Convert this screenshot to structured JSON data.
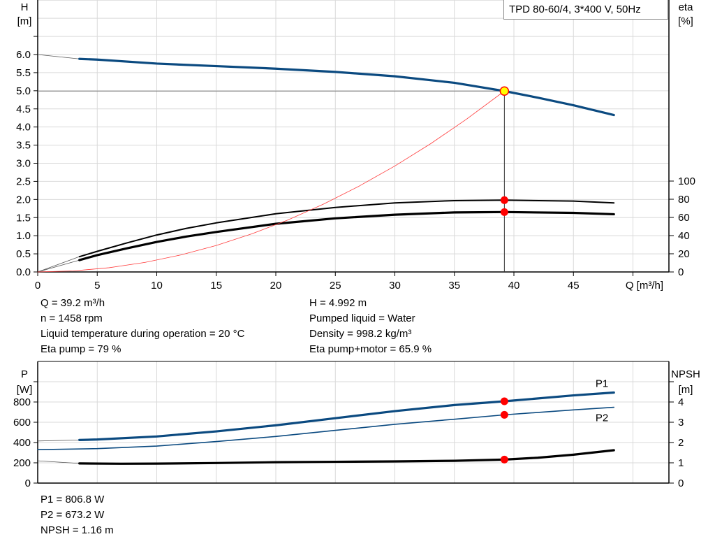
{
  "chart_data": [
    {
      "type": "line",
      "title": "TPD 80-60/4, 3*400 V, 50Hz",
      "xlabel": "Q [m³/h]",
      "ylabel": [
        "H",
        "[m]"
      ],
      "y2label": [
        "eta",
        "[%]"
      ],
      "xlim": [
        0,
        53
      ],
      "ylim": [
        0,
        7.5
      ],
      "y2lim": [
        0,
        100
      ],
      "grid": true,
      "legend": "top-right",
      "x_ticks": [
        "0",
        "5",
        "10",
        "15",
        "20",
        "25",
        "30",
        "35",
        "40",
        "45"
      ],
      "y_ticks": [
        "0.0",
        "0.5",
        "1.0",
        "1.5",
        "2.0",
        "2.5",
        "3.0",
        "3.5",
        "4.0",
        "4.5",
        "5.0",
        "5.5",
        "6.0"
      ],
      "y2_ticks": [
        "0",
        "20",
        "40",
        "60",
        "80",
        "100"
      ],
      "series": [
        {
          "id": "H",
          "axis": "left",
          "color": "#0b4a80",
          "width": 3.2,
          "x": [
            3.5,
            5,
            10,
            15,
            20,
            25,
            30,
            35,
            39.2,
            42,
            45,
            48.4
          ],
          "y": [
            5.88,
            5.86,
            5.75,
            5.68,
            5.61,
            5.52,
            5.4,
            5.22,
            4.992,
            4.81,
            4.6,
            4.33
          ],
          "extension": {
            "x": [
              0,
              3.5
            ],
            "y": [
              6.0,
              5.88
            ]
          }
        },
        {
          "id": "eta_pump",
          "axis": "right",
          "color": "#000000",
          "width": 2,
          "x": [
            3.5,
            5,
            7.5,
            10,
            12.5,
            15,
            20,
            25,
            30,
            35,
            39.2,
            45,
            48.4
          ],
          "y": [
            16.8,
            22.7,
            32,
            40.7,
            48,
            54,
            64,
            71,
            76,
            78.5,
            79,
            78,
            76
          ],
          "extension": {
            "x": [
              0,
              3.5
            ],
            "y": [
              0,
              16.8
            ]
          }
        },
        {
          "id": "eta_pump_motor",
          "axis": "right",
          "color": "#000000",
          "width": 3.2,
          "x": [
            3.5,
            5,
            7.5,
            10,
            12.5,
            15,
            20,
            25,
            30,
            35,
            39.2,
            45,
            48.4
          ],
          "y": [
            13,
            18.5,
            26,
            33,
            39,
            44,
            53,
            59,
            63,
            65.5,
            65.9,
            65,
            63.5
          ],
          "extension": {
            "x": [
              0,
              3.5
            ],
            "y": [
              0,
              13
            ]
          }
        },
        {
          "id": "system_curve",
          "axis": "left",
          "color": "#ff3b3b",
          "width": 0.8,
          "x": [
            0,
            3,
            6,
            9,
            12,
            15,
            18,
            21,
            24,
            27,
            30,
            33,
            36,
            39.2
          ],
          "y": [
            0,
            0.029,
            0.117,
            0.263,
            0.468,
            0.731,
            1.053,
            1.433,
            1.871,
            2.369,
            2.924,
            3.538,
            4.211,
            4.992
          ]
        }
      ],
      "operating_point": {
        "q": 39.2,
        "h": 4.992,
        "eta_pump": 79,
        "eta_pump_motor": 65.9
      }
    },
    {
      "type": "line",
      "ylabel": [
        "P",
        "[W]"
      ],
      "y2label": [
        "NPSH",
        "[m]"
      ],
      "xlim": [
        0,
        53
      ],
      "ylim": [
        0,
        1000
      ],
      "y2lim": [
        0,
        5
      ],
      "grid": true,
      "y_ticks": [
        "0",
        "200",
        "400",
        "600",
        "800"
      ],
      "y2_ticks": [
        "0",
        "1",
        "2",
        "3",
        "4"
      ],
      "series": [
        {
          "id": "P1",
          "name": "P1",
          "axis": "left",
          "color": "#0b4a80",
          "width": 3.2,
          "x": [
            3.5,
            5,
            10,
            15,
            20,
            25,
            30,
            35,
            39.2,
            45,
            48.4
          ],
          "y": [
            425,
            430,
            460,
            510,
            570,
            640,
            710,
            770,
            806.8,
            865,
            893
          ],
          "extension": {
            "x": [
              0,
              3.5
            ],
            "y": [
              415,
              425
            ]
          }
        },
        {
          "id": "P2",
          "name": "P2",
          "axis": "left",
          "color": "#0b4a80",
          "width": 1.6,
          "x": [
            0,
            5,
            10,
            15,
            20,
            25,
            30,
            35,
            39.2,
            45,
            48.4
          ],
          "y": [
            330,
            340,
            365,
            410,
            460,
            520,
            580,
            630,
            673.2,
            722,
            748
          ]
        },
        {
          "id": "NPSH",
          "axis": "right",
          "color": "#000000",
          "width": 3.2,
          "x": [
            3.5,
            7,
            10,
            15,
            20,
            25,
            30,
            35,
            39.2,
            42,
            45,
            48.4
          ],
          "y": [
            0.97,
            0.955,
            0.96,
            0.99,
            1.03,
            1.05,
            1.07,
            1.1,
            1.16,
            1.25,
            1.4,
            1.62
          ],
          "extension": {
            "x": [
              0,
              3.5
            ],
            "y": [
              1.1,
              0.97
            ]
          }
        }
      ],
      "operating_point": {
        "q": 39.2,
        "p1": 806.8,
        "p2": 673.2,
        "npsh": 1.16
      }
    }
  ],
  "info_top": {
    "left": [
      "Q = 39.2 m³/h",
      "n = 1458 rpm",
      "Liquid temperature during operation = 20 °C",
      "Eta pump = 79 %"
    ],
    "right": [
      "H = 4.992 m",
      "Pumped liquid = Water",
      "Density = 998.2 kg/m³",
      "Eta pump+motor = 65.9 %"
    ]
  },
  "info_bottom": [
    "P1 = 806.8 W",
    "P2 = 673.2 W",
    "NPSH = 1.16 m"
  ],
  "colors": {
    "grid": "#d9d9d9",
    "op_marker_fill": "#ffff00",
    "op_marker_stroke": "#ff0000",
    "marker": "#ff0000"
  }
}
